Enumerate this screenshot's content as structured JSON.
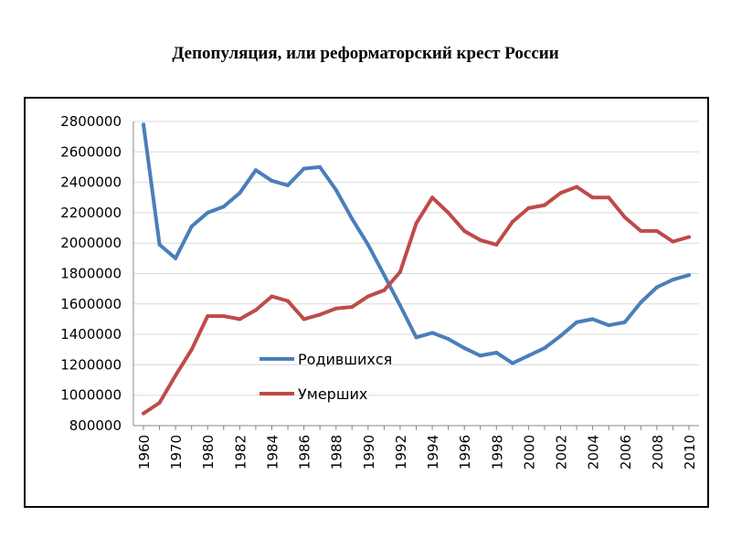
{
  "title": "Депопуляция, или реформаторский крест России",
  "colors": {
    "births": "#4a7ebb",
    "deaths": "#be4b48",
    "grid": "#d9d9d9",
    "axis": "#878787"
  },
  "chart_data": {
    "type": "line",
    "title": "Депопуляция, или реформаторский крест России",
    "xlabel": "",
    "ylabel": "",
    "ylim": [
      800000,
      2800000
    ],
    "yticks": [
      800000,
      1000000,
      1200000,
      1400000,
      1600000,
      1800000,
      2000000,
      2200000,
      2400000,
      2600000,
      2800000
    ],
    "grid": true,
    "legend": "center-left",
    "categories": [
      "1960",
      "1965",
      "1970",
      "1975",
      "1980",
      "1981",
      "1982",
      "1983",
      "1984",
      "1985",
      "1986",
      "1987",
      "1988",
      "1989",
      "1990",
      "1991",
      "1992",
      "1993",
      "1994",
      "1995",
      "1996",
      "1997",
      "1998",
      "1999",
      "2000",
      "2001",
      "2002",
      "2003",
      "2004",
      "2005",
      "2006",
      "2007",
      "2008",
      "2009",
      "2010"
    ],
    "tick_labels": [
      "1960",
      "1970",
      "1980",
      "1982",
      "1984",
      "1986",
      "1988",
      "1990",
      "1992",
      "1994",
      "1996",
      "1998",
      "2000",
      "2002",
      "2004",
      "2006",
      "2008",
      "2010"
    ],
    "series": [
      {
        "name": "Родившихся",
        "values": [
          2780000,
          1990000,
          1900000,
          2110000,
          2200000,
          2240000,
          2330000,
          2480000,
          2410000,
          2380000,
          2490000,
          2500000,
          2350000,
          2160000,
          1990000,
          1790000,
          1590000,
          1380000,
          1410000,
          1370000,
          1310000,
          1260000,
          1280000,
          1210000,
          1260000,
          1310000,
          1390000,
          1480000,
          1500000,
          1460000,
          1480000,
          1610000,
          1710000,
          1760000,
          1790000
        ]
      },
      {
        "name": "Умерших",
        "values": [
          880000,
          950000,
          1130000,
          1300000,
          1520000,
          1520000,
          1500000,
          1560000,
          1650000,
          1620000,
          1500000,
          1530000,
          1570000,
          1580000,
          1650000,
          1690000,
          1810000,
          2130000,
          2300000,
          2200000,
          2080000,
          2020000,
          1990000,
          2140000,
          2230000,
          2250000,
          2330000,
          2370000,
          2300000,
          2300000,
          2170000,
          2080000,
          2080000,
          2010000,
          2040000
        ]
      }
    ]
  }
}
